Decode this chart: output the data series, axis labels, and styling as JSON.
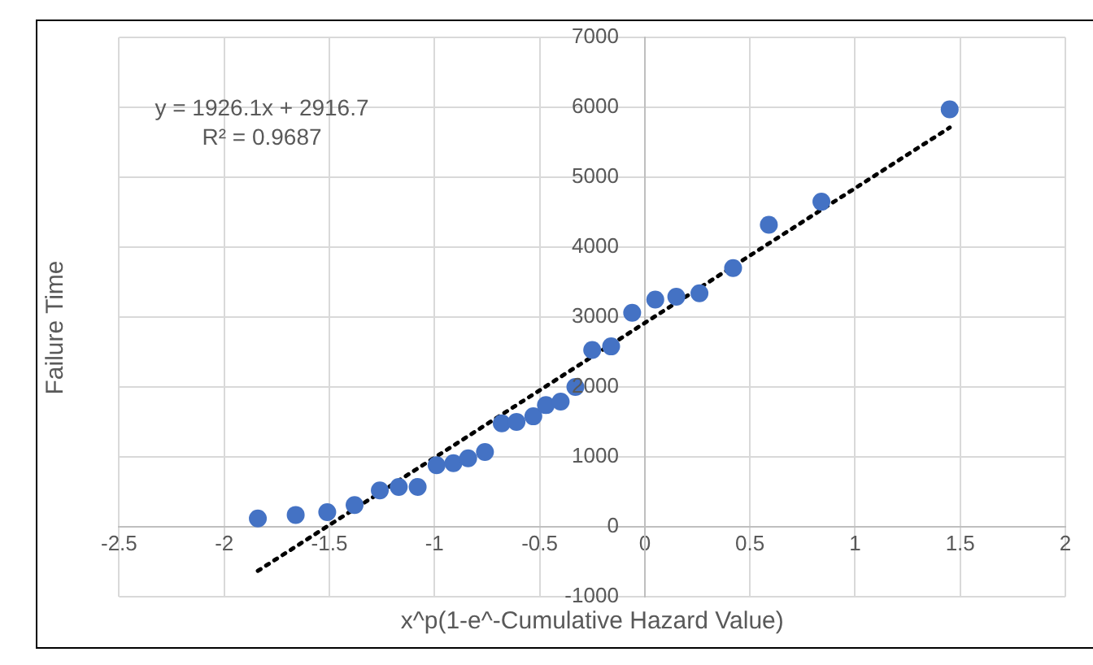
{
  "chart_data": {
    "type": "scatter",
    "xlabel": "x^p(1-e^-Cumulative Hazard Value)",
    "ylabel": "Failure Time",
    "xlim": [
      -2.5,
      2
    ],
    "xticks": [
      -2.5,
      -2,
      -1.5,
      -1,
      -0.5,
      0,
      0.5,
      1,
      1.5,
      2
    ],
    "ylim": [
      -1000,
      7000
    ],
    "yticks": [
      -1000,
      0,
      1000,
      2000,
      3000,
      4000,
      5000,
      6000,
      7000
    ],
    "grid": true,
    "legend": false,
    "marker": "circle",
    "annotations": [
      "y = 1926.1x + 2916.7",
      "R² = 0.9687"
    ],
    "series": [
      {
        "color": "#4472c4",
        "x": [
          -1.84,
          -1.66,
          -1.51,
          -1.38,
          -1.26,
          -1.17,
          -1.08,
          -0.99,
          -0.91,
          -0.84,
          -0.76,
          -0.68,
          -0.61,
          -0.53,
          -0.47,
          -0.4,
          -0.33,
          -0.25,
          -0.16,
          -0.06,
          0.05,
          0.15,
          0.26,
          0.42,
          0.59,
          0.84,
          1.45
        ],
        "values": [
          120,
          170,
          210,
          310,
          520,
          570,
          570,
          880,
          910,
          980,
          1070,
          1480,
          1500,
          1580,
          1740,
          1790,
          2000,
          2530,
          2580,
          3060,
          3250,
          3290,
          3340,
          3700,
          4320,
          4650,
          5970
        ]
      },
      {
        "type": "line",
        "color": "#000000",
        "line_style": "dotted",
        "marker": "none",
        "x": [
          -1.84,
          1.45
        ],
        "values": [
          -630,
          5710
        ]
      }
    ]
  }
}
